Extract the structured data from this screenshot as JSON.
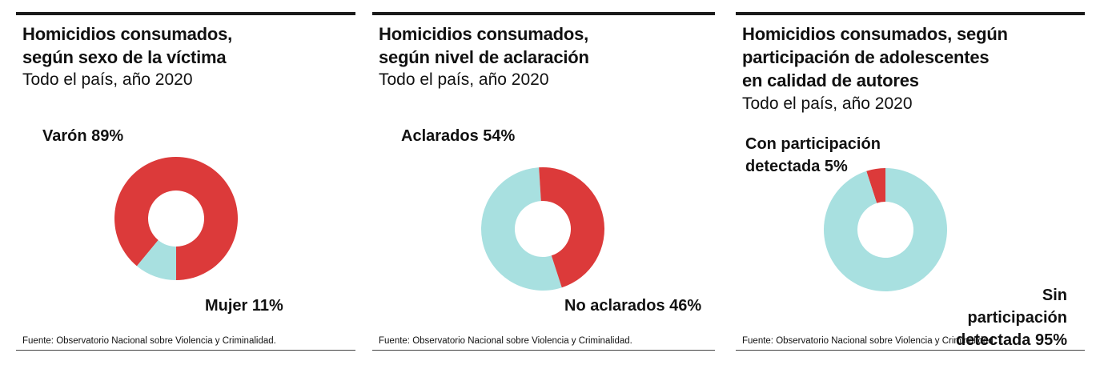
{
  "colors": {
    "red": "#dc3a3a",
    "cyan": "#a8e0e0"
  },
  "chart_data": [
    {
      "type": "pie",
      "donut": true,
      "title": "Homicidios consumados, según sexo de la víctima",
      "title_lines": [
        "Homicidios consumados,",
        "según sexo de la víctima"
      ],
      "subtitle": "Todo el país, año 2020",
      "source": "Fuente: Observatorio Nacional sobre Violencia y Criminalidad.",
      "slices": [
        {
          "name": "Varón",
          "label_lines": [
            "Varón 89%"
          ],
          "value": 89,
          "color": "#dc3a3a"
        },
        {
          "name": "Mujer",
          "label_lines": [
            "Mujer 11%"
          ],
          "value": 11,
          "color": "#a8e0e0"
        }
      ]
    },
    {
      "type": "pie",
      "donut": true,
      "title": "Homicidios consumados, según nivel de aclaración",
      "title_lines": [
        "Homicidios consumados,",
        "según nivel de aclaración"
      ],
      "subtitle": "Todo el país, año 2020",
      "source": "Fuente: Observatorio Nacional sobre Violencia y Criminalidad.",
      "slices": [
        {
          "name": "Aclarados",
          "label_lines": [
            "Aclarados 54%"
          ],
          "value": 54,
          "color": "#a8e0e0"
        },
        {
          "name": "No aclarados",
          "label_lines": [
            "No aclarados 46%"
          ],
          "value": 46,
          "color": "#dc3a3a"
        }
      ]
    },
    {
      "type": "pie",
      "donut": true,
      "title": "Homicidios consumados, según participación de adolescentes en calidad de autores",
      "title_lines": [
        "Homicidios consumados, según",
        "participación de adolescentes",
        "en calidad de autores"
      ],
      "subtitle": "Todo el país, año 2020",
      "source": "Fuente: Observatorio Nacional sobre Violencia y Criminalidad.",
      "slices": [
        {
          "name": "Con participación detectada",
          "label_lines": [
            "Con participación",
            "detectada 5%"
          ],
          "value": 5,
          "color": "#dc3a3a"
        },
        {
          "name": "Sin participación detectada",
          "label_lines": [
            "Sin participación",
            "detectada 95%"
          ],
          "value": 95,
          "color": "#a8e0e0"
        }
      ]
    }
  ]
}
